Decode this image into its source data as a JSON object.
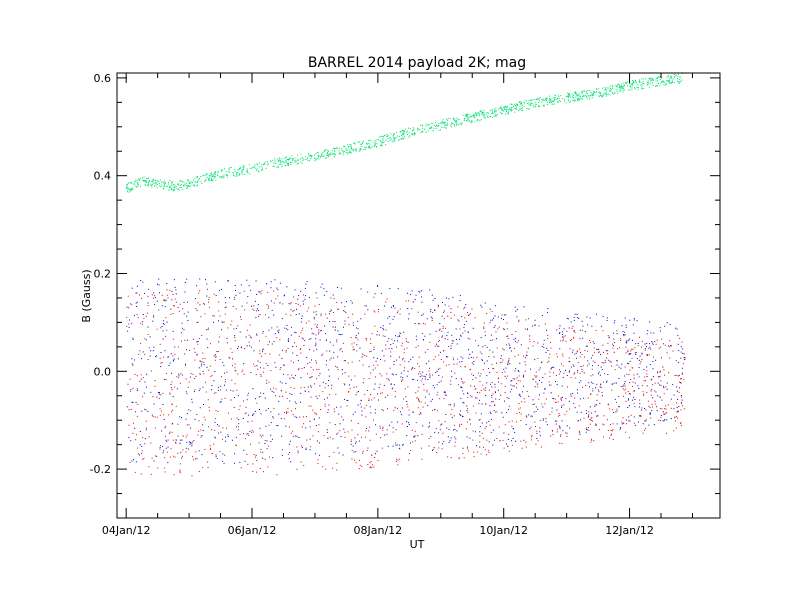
{
  "chart_data": {
    "type": "scatter",
    "title": "BARREL 2014 payload 2K; mag",
    "xlabel": "UT",
    "ylabel": "B (Gauss)",
    "xlim": [
      "2012-01-03T20:30",
      "2012-01-13T10:30"
    ],
    "ylim": [
      -0.3,
      0.61
    ],
    "x_ticks": [
      "04Jan/12",
      "06Jan/12",
      "08Jan/12",
      "10Jan/12",
      "12Jan/12"
    ],
    "y_ticks": [
      "-0.2",
      "0.0",
      "0.2",
      "0.4",
      "0.6"
    ],
    "grid": false,
    "series": [
      {
        "color": "#00e070",
        "x": [
          "2012-01-04T00:00",
          "2012-01-04T06:00",
          "2012-01-04T12:00",
          "2012-01-04T18:00",
          "2012-01-05T00:00",
          "2012-01-05T06:00",
          "2012-01-05T12:00",
          "2012-01-05T18:00",
          "2012-01-06T00:00",
          "2012-01-06T12:00",
          "2012-01-07T00:00",
          "2012-01-07T12:00",
          "2012-01-08T00:00",
          "2012-01-08T12:00",
          "2012-01-09T00:00",
          "2012-01-09T12:00",
          "2012-01-10T00:00",
          "2012-01-10T12:00",
          "2012-01-11T00:00",
          "2012-01-11T12:00",
          "2012-01-12T00:00",
          "2012-01-12T12:00",
          "2012-01-12T20:00"
        ],
        "values": [
          0.375,
          0.39,
          0.385,
          0.38,
          0.385,
          0.395,
          0.405,
          0.41,
          0.415,
          0.43,
          0.44,
          0.455,
          0.47,
          0.49,
          0.505,
          0.52,
          0.535,
          0.55,
          0.56,
          0.57,
          0.585,
          0.595,
          0.6
        ]
      },
      {
        "color": "#0000d0",
        "x": [
          "2012-01-04T00:00",
          "2012-01-06T00:00",
          "2012-01-08T00:00",
          "2012-01-09T00:00",
          "2012-01-10T00:00",
          "2012-01-11T00:00",
          "2012-01-12T00:00",
          "2012-01-12T21:00"
        ],
        "upper": [
          0.19,
          0.19,
          0.18,
          0.165,
          0.14,
          0.125,
          0.11,
          0.1
        ],
        "lower": [
          -0.19,
          -0.19,
          -0.17,
          -0.16,
          -0.15,
          -0.13,
          -0.115,
          -0.1
        ]
      },
      {
        "color": "#e00000",
        "x": [
          "2012-01-04T00:00",
          "2012-01-06T00:00",
          "2012-01-08T00:00",
          "2012-01-09T00:00",
          "2012-01-10T00:00",
          "2012-01-11T00:00",
          "2012-01-12T00:00",
          "2012-01-12T21:00"
        ],
        "upper": [
          0.17,
          0.17,
          0.155,
          0.14,
          0.12,
          0.1,
          0.08,
          0.07
        ],
        "lower": [
          -0.21,
          -0.215,
          -0.195,
          -0.18,
          -0.17,
          -0.15,
          -0.135,
          -0.125
        ]
      }
    ]
  }
}
